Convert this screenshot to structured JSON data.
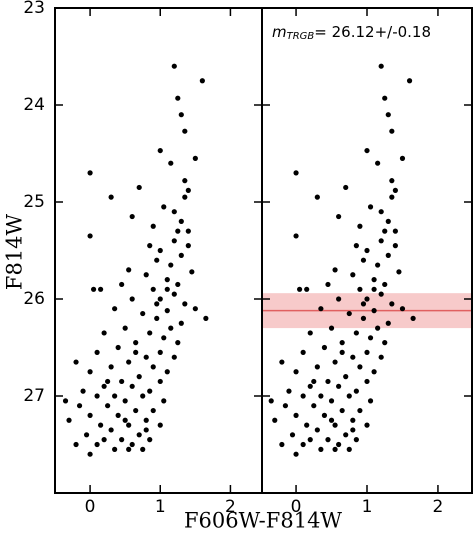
{
  "chart_data": [
    {
      "type": "scatter",
      "xlabel": "F606W-F814W",
      "ylabel": "F814W",
      "color": "#000000",
      "xlim": [
        -0.5,
        2.45
      ],
      "ylim": [
        23,
        28
      ],
      "y_inverted": true,
      "xticks": [
        0,
        1,
        2
      ],
      "yticks": [
        23,
        24,
        25,
        26,
        27
      ],
      "ytick_labels": true,
      "x": [
        1.2,
        1.6,
        1.25,
        1.3,
        1.35,
        1.0,
        1.5,
        1.15,
        0.0,
        0.7,
        1.35,
        1.4,
        1.35,
        0.3,
        1.05,
        1.2,
        0.6,
        1.3,
        0.9,
        1.25,
        0.0,
        1.2,
        0.85,
        1.4,
        1.0,
        1.3,
        0.95,
        1.15,
        0.55,
        1.45,
        0.8,
        1.1,
        0.45,
        1.25,
        0.05,
        0.9,
        0.15,
        1.2,
        1.0,
        0.6,
        1.35,
        1.5,
        0.35,
        1.1,
        0.75,
        1.65,
        0.95,
        1.3,
        0.5,
        1.15,
        0.2,
        0.85,
        1.05,
        1.25,
        0.65,
        0.4,
        1.0,
        0.1,
        0.8,
        1.2,
        0.55,
        -0.2,
        0.3,
        0.9,
        1.1,
        0.0,
        0.7,
        0.45,
        1.0,
        0.2,
        0.6,
        -0.1,
        0.85,
        0.35,
        0.1,
        0.75,
        1.05,
        0.5,
        -0.15,
        0.25,
        0.65,
        0.9,
        0.0,
        0.4,
        0.8,
        -0.3,
        0.15,
        0.55,
        1.0,
        0.3,
        0.7,
        -0.05,
        0.45,
        0.85,
        0.1,
        0.6,
        -0.2,
        0.35,
        0.75,
        0.0,
        0.5,
        0.2,
        0.65,
        0.95,
        1.4,
        1.1,
        0.55,
        0.25,
        -0.35,
        0.8
      ],
      "values": [
        23.6,
        23.75,
        23.93,
        24.1,
        24.27,
        24.47,
        24.55,
        24.6,
        24.7,
        24.85,
        24.78,
        24.88,
        24.95,
        24.95,
        25.05,
        25.1,
        25.15,
        25.2,
        25.25,
        25.3,
        25.35,
        25.4,
        25.45,
        25.45,
        25.5,
        25.55,
        25.6,
        25.65,
        25.7,
        25.72,
        25.75,
        25.8,
        25.85,
        25.85,
        25.9,
        25.9,
        25.9,
        25.95,
        26.0,
        26.0,
        26.05,
        26.1,
        26.1,
        26.12,
        26.15,
        26.2,
        26.2,
        26.25,
        26.3,
        26.3,
        26.35,
        26.35,
        26.4,
        26.45,
        26.45,
        26.5,
        26.55,
        26.55,
        26.6,
        26.6,
        26.65,
        26.65,
        26.7,
        26.7,
        26.75,
        26.75,
        26.8,
        26.85,
        26.85,
        26.9,
        26.9,
        26.95,
        26.95,
        27.0,
        27.0,
        27.0,
        27.05,
        27.05,
        27.1,
        27.1,
        27.15,
        27.15,
        27.2,
        27.2,
        27.25,
        27.25,
        27.3,
        27.3,
        27.3,
        27.35,
        27.4,
        27.4,
        27.45,
        27.45,
        27.5,
        27.5,
        27.5,
        27.55,
        27.55,
        27.6,
        27.25,
        27.45,
        26.55,
        26.05,
        25.3,
        25.9,
        27.55,
        26.85,
        27.05,
        27.35
      ]
    },
    {
      "type": "scatter",
      "color": "#000000",
      "xlim": [
        -0.48,
        2.48
      ],
      "ylim": [
        23,
        28
      ],
      "y_inverted": true,
      "xticks": [
        0,
        1,
        2
      ],
      "yticks": [
        23,
        24,
        25,
        26,
        27
      ],
      "ytick_labels": false,
      "trgb": {
        "value": 26.12,
        "error": 0.18,
        "line_color": "#e06060",
        "band_color": "#f4b8b8",
        "label_symbol": "m",
        "label_subscript": "TRGB",
        "label_text": "= 26.12+/-0.18"
      },
      "x": [
        1.2,
        1.6,
        1.25,
        1.3,
        1.35,
        1.0,
        1.5,
        1.15,
        0.0,
        0.7,
        1.35,
        1.4,
        1.35,
        0.3,
        1.05,
        1.2,
        0.6,
        1.3,
        0.9,
        1.25,
        0.0,
        1.2,
        0.85,
        1.4,
        1.0,
        1.3,
        0.95,
        1.15,
        0.55,
        1.45,
        0.8,
        1.1,
        0.45,
        1.25,
        0.05,
        0.9,
        0.15,
        1.2,
        1.0,
        0.6,
        1.35,
        1.5,
        0.35,
        1.1,
        0.75,
        1.65,
        0.95,
        1.3,
        0.5,
        1.15,
        0.2,
        0.85,
        1.05,
        1.25,
        0.65,
        0.4,
        1.0,
        0.1,
        0.8,
        1.2,
        0.55,
        -0.2,
        0.3,
        0.9,
        1.1,
        0.0,
        0.7,
        0.45,
        1.0,
        0.2,
        0.6,
        -0.1,
        0.85,
        0.35,
        0.1,
        0.75,
        1.05,
        0.5,
        -0.15,
        0.25,
        0.65,
        0.9,
        0.0,
        0.4,
        0.8,
        -0.3,
        0.15,
        0.55,
        1.0,
        0.3,
        0.7,
        -0.05,
        0.45,
        0.85,
        0.1,
        0.6,
        -0.2,
        0.35,
        0.75,
        0.0,
        0.5,
        0.2,
        0.65,
        0.95,
        1.4,
        1.1,
        0.55,
        0.25,
        -0.35,
        0.8
      ],
      "values": [
        23.6,
        23.75,
        23.93,
        24.1,
        24.27,
        24.47,
        24.55,
        24.6,
        24.7,
        24.85,
        24.78,
        24.88,
        24.95,
        24.95,
        25.05,
        25.1,
        25.15,
        25.2,
        25.25,
        25.3,
        25.35,
        25.4,
        25.45,
        25.45,
        25.5,
        25.55,
        25.6,
        25.65,
        25.7,
        25.72,
        25.75,
        25.8,
        25.85,
        25.85,
        25.9,
        25.9,
        25.9,
        25.95,
        26.0,
        26.0,
        26.05,
        26.1,
        26.1,
        26.12,
        26.15,
        26.2,
        26.2,
        26.25,
        26.3,
        26.3,
        26.35,
        26.35,
        26.4,
        26.45,
        26.45,
        26.5,
        26.55,
        26.55,
        26.6,
        26.6,
        26.65,
        26.65,
        26.7,
        26.7,
        26.75,
        26.75,
        26.8,
        26.85,
        26.85,
        26.9,
        26.9,
        26.95,
        26.95,
        27.0,
        27.0,
        27.0,
        27.05,
        27.05,
        27.1,
        27.1,
        27.15,
        27.15,
        27.2,
        27.2,
        27.25,
        27.25,
        27.3,
        27.3,
        27.3,
        27.35,
        27.4,
        27.4,
        27.45,
        27.45,
        27.5,
        27.5,
        27.5,
        27.55,
        27.55,
        27.6,
        27.25,
        27.45,
        26.55,
        26.05,
        25.3,
        25.9,
        27.55,
        26.85,
        27.05,
        27.35
      ]
    }
  ]
}
